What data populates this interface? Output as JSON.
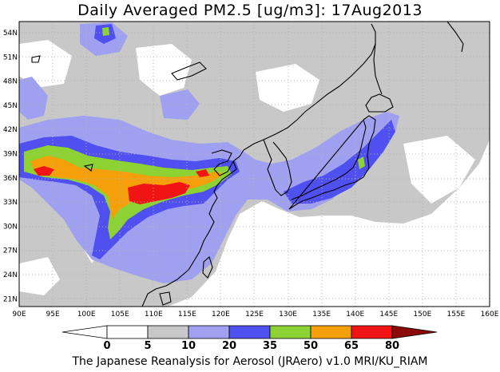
{
  "title": "Daily Averaged PM2.5 [ug/m3]: 17Aug2013",
  "footer": "The Japanese Reanalysis for Aerosol (JRAero) v1.0 MRI/KU_RIAM",
  "lon_labels": [
    "90E",
    "95E",
    "100E",
    "105E",
    "110E",
    "115E",
    "120E",
    "125E",
    "130E",
    "135E",
    "140E",
    "145E",
    "150E",
    "155E",
    "160E"
  ],
  "lat_labels": [
    "54N",
    "51N",
    "48N",
    "45N",
    "42N",
    "39N",
    "36N",
    "33N",
    "30N",
    "27N",
    "24N",
    "21N"
  ],
  "colorbar": {
    "tick_labels": [
      "0",
      "5",
      "10",
      "20",
      "35",
      "50",
      "65",
      "80"
    ],
    "colors": [
      "#ffffff",
      "#c8c8c8",
      "#a0a0f0",
      "#5050f0",
      "#8cd232",
      "#f5a00a",
      "#f01414",
      "#8b0a0a"
    ],
    "underflow_color": "#ffffff"
  },
  "map_legend_colors": {
    "ocean_background": "#ffffff",
    "coastline": "#000000",
    "gridline": "#b4b4b4"
  }
}
